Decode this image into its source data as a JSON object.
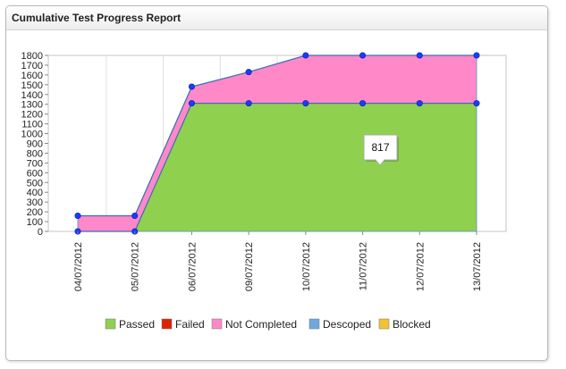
{
  "window": {
    "title": "Cumulative Test Progress Report"
  },
  "chart_data": {
    "type": "area",
    "categories": [
      "04/07/2012",
      "05/07/2012",
      "06/07/2012",
      "09/07/2012",
      "10/07/2012",
      "11/07/2012",
      "12/07/2012",
      "13/07/2012"
    ],
    "stacking": "cumulative",
    "series": [
      {
        "name": "Passed",
        "color": "#8fd14f",
        "values": [
          0,
          0,
          1310,
          1310,
          1310,
          1310,
          1310,
          1310
        ]
      },
      {
        "name": "Failed",
        "color": "#dd2200",
        "values": [
          0,
          0,
          0,
          0,
          0,
          0,
          0,
          0
        ]
      },
      {
        "name": "Not Completed",
        "color": "#ff88c8",
        "values": [
          160,
          160,
          170,
          320,
          490,
          490,
          490,
          490
        ]
      },
      {
        "name": "Descoped",
        "color": "#6fa8dc",
        "values": [
          0,
          0,
          0,
          0,
          0,
          0,
          0,
          0
        ]
      },
      {
        "name": "Blocked",
        "color": "#f1c232",
        "values": [
          0,
          0,
          0,
          0,
          0,
          0,
          0,
          0
        ]
      }
    ],
    "yticks": [
      0,
      100,
      200,
      300,
      400,
      500,
      600,
      700,
      800,
      900,
      1000,
      1100,
      1200,
      1300,
      1400,
      1500,
      1600,
      1700,
      1800
    ],
    "ylim": [
      0,
      1800
    ],
    "grid": "vertical",
    "legend": "bottom-center",
    "tooltip": {
      "text": "817"
    }
  }
}
